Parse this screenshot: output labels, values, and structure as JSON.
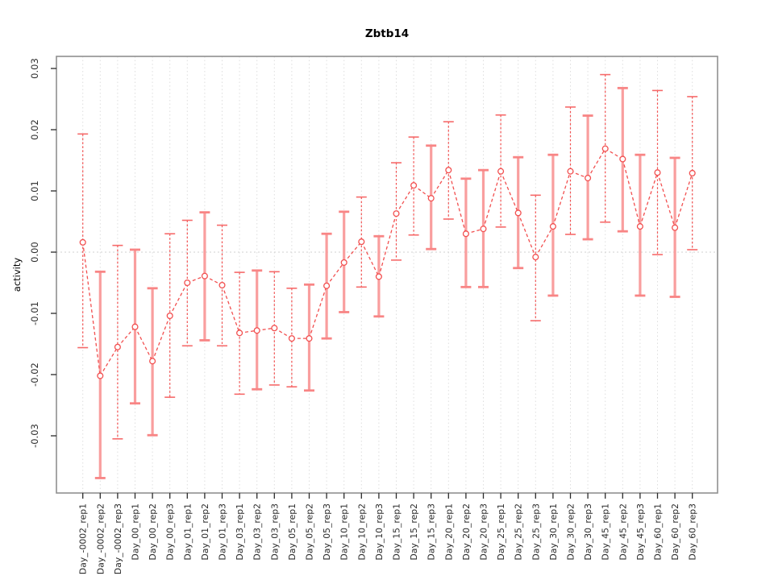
{
  "title": "Zbtb14",
  "ylabel": "activity",
  "colors": {
    "point_red": "#f25050",
    "bar_dashed_red": "#f25050",
    "bar_thick_pink": "#f99e9e",
    "cap_red": "#f66a6a",
    "grid_gray": "#dedede",
    "zero_line_gray": "#d0d0d0",
    "axis_box_gray": "#8f8f8f",
    "tick_black": "#2a2a2a",
    "background": "#ffffff"
  },
  "chart_data": {
    "type": "scatter",
    "subtype": "means-with-error-bars-connected-by-dashed-line",
    "title": "Zbtb14",
    "xlabel": "",
    "ylabel": "activity",
    "grid": "vertical dotted gridlines at each category; dotted horizontal line at y=0 only",
    "legend_position": "none",
    "ylim": [
      -0.0393,
      0.032
    ],
    "yticks": {
      "values": [
        -0.03,
        -0.02,
        -0.01,
        0.0,
        0.01,
        0.02,
        0.03
      ],
      "labels": [
        "-0.03",
        "-0.02",
        "-0.01",
        "0.00",
        "0.01",
        "0.02",
        "0.03"
      ]
    },
    "categories": [
      "Day_-0002_rep1",
      "Day_-0002_rep2",
      "Day_-0002_rep3",
      "Day_00_rep1",
      "Day_00_rep2",
      "Day_00_rep3",
      "Day_01_rep1",
      "Day_01_rep2",
      "Day_01_rep3",
      "Day_03_rep1",
      "Day_03_rep2",
      "Day_03_rep3",
      "Day_05_rep1",
      "Day_05_rep2",
      "Day_05_rep3",
      "Day_10_rep1",
      "Day_10_rep2",
      "Day_10_rep3",
      "Day_15_rep1",
      "Day_15_rep2",
      "Day_15_rep3",
      "Day_20_rep1",
      "Day_20_rep2",
      "Day_20_rep3",
      "Day_25_rep1",
      "Day_25_rep2",
      "Day_25_rep3",
      "Day_30_rep1",
      "Day_30_rep2",
      "Day_30_rep3",
      "Day_45_rep1",
      "Day_45_rep2",
      "Day_45_rep3",
      "Day_60_rep1",
      "Day_60_rep2",
      "Day_60_rep3"
    ],
    "series": [
      {
        "name": "activity",
        "values": [
          0.0016,
          -0.0202,
          -0.0155,
          -0.0122,
          -0.0178,
          -0.0104,
          -0.005,
          -0.0039,
          -0.0054,
          -0.0132,
          -0.0128,
          -0.0124,
          -0.0141,
          -0.0141,
          -0.0055,
          -0.0017,
          0.0017,
          -0.004,
          0.0063,
          0.0109,
          0.0088,
          0.0134,
          0.003,
          0.0038,
          0.0132,
          0.0064,
          -0.0008,
          0.0042,
          0.0132,
          0.0121,
          0.0169,
          0.0152,
          0.0042,
          0.013,
          0.004,
          0.0129
        ],
        "error_low": [
          -0.0156,
          -0.0369,
          -0.0305,
          -0.0247,
          -0.0299,
          -0.0237,
          -0.0153,
          -0.0144,
          -0.0153,
          -0.0232,
          -0.0224,
          -0.0217,
          -0.022,
          -0.0226,
          -0.0141,
          -0.0098,
          -0.0057,
          -0.0105,
          -0.0013,
          0.0028,
          0.0005,
          0.0054,
          -0.0057,
          -0.0057,
          0.0041,
          -0.0026,
          -0.0112,
          -0.0071,
          0.0029,
          0.0021,
          0.0049,
          0.0034,
          -0.0071,
          -0.0004,
          -0.0073,
          0.0004
        ],
        "error_high": [
          0.0193,
          -0.0032,
          0.0011,
          0.0004,
          -0.0059,
          0.003,
          0.0052,
          0.0065,
          0.0044,
          -0.0033,
          -0.003,
          -0.0032,
          -0.0059,
          -0.0053,
          0.003,
          0.0066,
          0.009,
          0.0026,
          0.0146,
          0.0188,
          0.0174,
          0.0213,
          0.012,
          0.0134,
          0.0224,
          0.0155,
          0.0093,
          0.0159,
          0.0237,
          0.0223,
          0.029,
          0.0268,
          0.0159,
          0.0264,
          0.0154,
          0.0254
        ],
        "bar_styles": [
          "dashed",
          "thick",
          "dashed",
          "thick",
          "thick",
          "dashed",
          "dashed",
          "thick",
          "dashed",
          "dashed",
          "thick",
          "dashed",
          "dashed",
          "thick",
          "thick",
          "thick",
          "dashed",
          "thick",
          "dashed",
          "dashed",
          "thick",
          "dashed",
          "thick",
          "thick",
          "dashed",
          "thick",
          "dashed",
          "thick",
          "dashed",
          "thick",
          "dashed",
          "thick",
          "thick",
          "dashed",
          "thick",
          "dashed"
        ]
      }
    ]
  }
}
